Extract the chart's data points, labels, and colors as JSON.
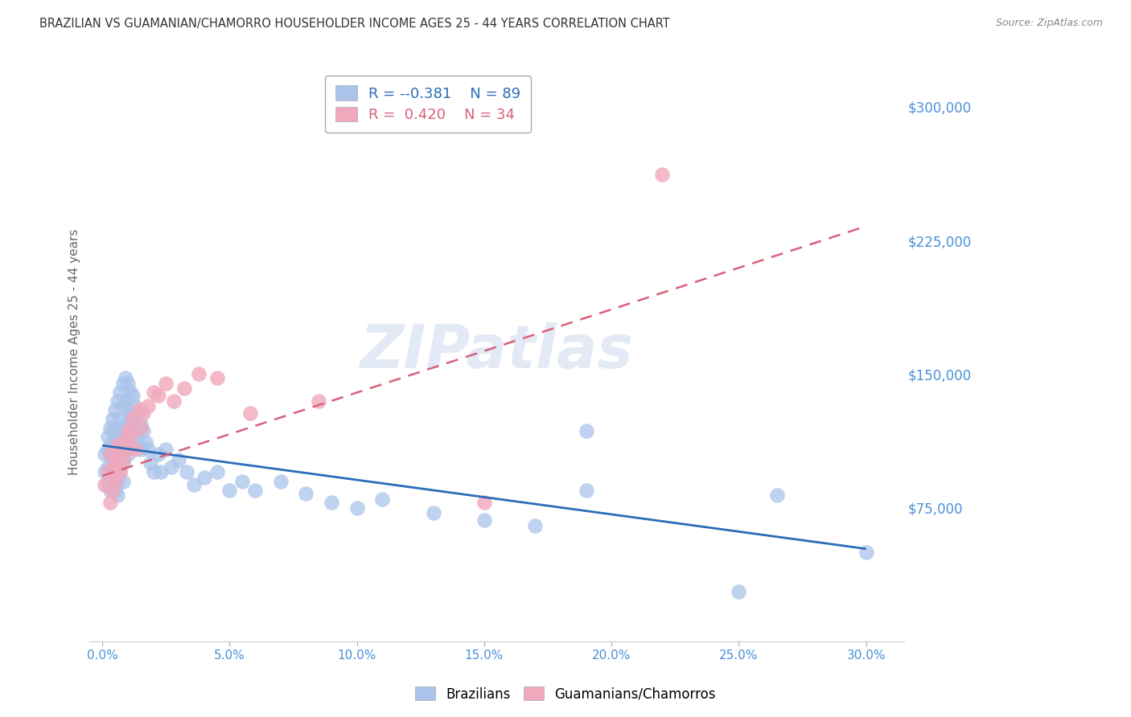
{
  "title": "BRAZILIAN VS GUAMANIAN/CHAMORRO HOUSEHOLDER INCOME AGES 25 - 44 YEARS CORRELATION CHART",
  "source": "Source: ZipAtlas.com",
  "ylabel": "Householder Income Ages 25 - 44 years",
  "ytick_vals": [
    0,
    75000,
    150000,
    225000,
    300000
  ],
  "ytick_labels": [
    "",
    "$75,000",
    "$150,000",
    "$225,000",
    "$300,000"
  ],
  "xtick_vals": [
    0.0,
    0.05,
    0.1,
    0.15,
    0.2,
    0.25,
    0.3
  ],
  "xtick_labels": [
    "0.0%",
    "5.0%",
    "10.0%",
    "15.0%",
    "20.0%",
    "25.0%",
    "30.0%"
  ],
  "ylim": [
    0,
    325000
  ],
  "xlim": [
    -0.005,
    0.315
  ],
  "watermark": "ZIPatlas",
  "blue_color": "#aac4ea",
  "pink_color": "#f0a8bc",
  "blue_line_color": "#2b6cb8",
  "pink_line_color": "#d9607a",
  "title_color": "#333333",
  "axis_label_color": "#666666",
  "tick_label_color": "#4a90d9",
  "grid_color": "#cccccc",
  "background_color": "#ffffff",
  "blue_R": "-0.381",
  "blue_N": "89",
  "pink_R": "0.420",
  "pink_N": "34",
  "blue_line_y0": 110000,
  "blue_line_y1": 52000,
  "pink_line_y0": 93000,
  "pink_line_y1": 233000,
  "brazilians_x": [
    0.001,
    0.001,
    0.002,
    0.002,
    0.002,
    0.002,
    0.003,
    0.003,
    0.003,
    0.003,
    0.003,
    0.004,
    0.004,
    0.004,
    0.004,
    0.004,
    0.005,
    0.005,
    0.005,
    0.005,
    0.005,
    0.005,
    0.006,
    0.006,
    0.006,
    0.006,
    0.006,
    0.006,
    0.007,
    0.007,
    0.007,
    0.007,
    0.007,
    0.008,
    0.008,
    0.008,
    0.008,
    0.008,
    0.008,
    0.009,
    0.009,
    0.009,
    0.009,
    0.01,
    0.01,
    0.01,
    0.01,
    0.011,
    0.011,
    0.011,
    0.012,
    0.012,
    0.012,
    0.013,
    0.013,
    0.014,
    0.014,
    0.015,
    0.015,
    0.016,
    0.017,
    0.018,
    0.019,
    0.02,
    0.022,
    0.023,
    0.025,
    0.027,
    0.03,
    0.033,
    0.036,
    0.04,
    0.045,
    0.05,
    0.055,
    0.06,
    0.07,
    0.08,
    0.09,
    0.1,
    0.11,
    0.13,
    0.15,
    0.17,
    0.19,
    0.19,
    0.25,
    0.265,
    0.3
  ],
  "brazilians_y": [
    105000,
    95000,
    108000,
    98000,
    115000,
    88000,
    120000,
    105000,
    95000,
    110000,
    85000,
    125000,
    112000,
    100000,
    92000,
    118000,
    130000,
    115000,
    105000,
    95000,
    85000,
    108000,
    135000,
    120000,
    110000,
    100000,
    90000,
    82000,
    140000,
    125000,
    115000,
    105000,
    95000,
    145000,
    132000,
    120000,
    110000,
    100000,
    90000,
    148000,
    135000,
    122000,
    108000,
    145000,
    130000,
    118000,
    105000,
    140000,
    128000,
    115000,
    138000,
    125000,
    110000,
    132000,
    118000,
    128000,
    112000,
    122000,
    108000,
    118000,
    112000,
    108000,
    100000,
    95000,
    105000,
    95000,
    108000,
    98000,
    102000,
    95000,
    88000,
    92000,
    95000,
    85000,
    90000,
    85000,
    90000,
    83000,
    78000,
    75000,
    80000,
    72000,
    68000,
    65000,
    118000,
    85000,
    28000,
    82000,
    50000
  ],
  "chamorros_x": [
    0.001,
    0.002,
    0.003,
    0.003,
    0.004,
    0.004,
    0.005,
    0.005,
    0.006,
    0.006,
    0.007,
    0.007,
    0.008,
    0.008,
    0.009,
    0.01,
    0.011,
    0.012,
    0.013,
    0.014,
    0.015,
    0.016,
    0.018,
    0.02,
    0.022,
    0.025,
    0.028,
    0.032,
    0.038,
    0.045,
    0.058,
    0.085,
    0.15,
    0.22
  ],
  "chamorros_y": [
    88000,
    95000,
    78000,
    105000,
    92000,
    85000,
    100000,
    90000,
    110000,
    98000,
    105000,
    95000,
    112000,
    102000,
    108000,
    118000,
    115000,
    125000,
    108000,
    130000,
    120000,
    128000,
    132000,
    140000,
    138000,
    145000,
    135000,
    142000,
    150000,
    148000,
    128000,
    135000,
    78000,
    262000
  ]
}
